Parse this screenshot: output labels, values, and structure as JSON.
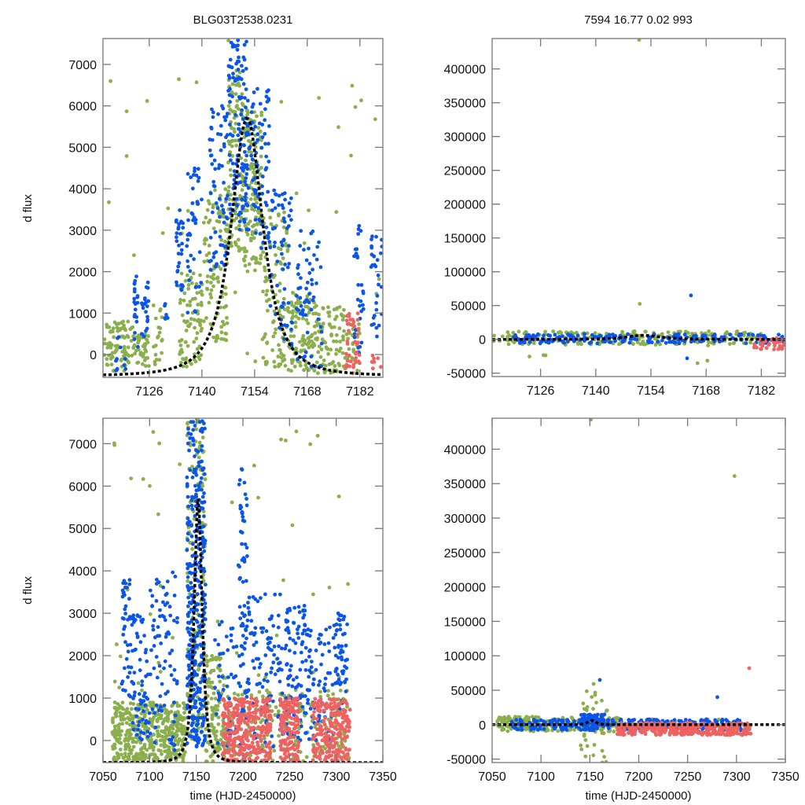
{
  "titles": {
    "left": "BLG03T2538.0231",
    "right": "7594  16.77  0.02  993"
  },
  "colors": {
    "series_a": "#8aaf4c",
    "series_b": "#0b55e8",
    "series_c": "#ee6262",
    "model": "#000000",
    "frame": "#777777"
  },
  "chart_data": [
    {
      "id": "zoom-flux",
      "type": "scatter",
      "title": "BLG03T2538.0231",
      "xlabel": "",
      "ylabel": "d flux",
      "xlim": [
        7113.7,
        7188.1
      ],
      "ylim": [
        -550,
        7625
      ],
      "xticks": [
        7126,
        7140,
        7154,
        7168,
        7182
      ],
      "yticks": [
        0,
        1000,
        2000,
        3000,
        4000,
        5000,
        6000,
        7000
      ],
      "model": {
        "t0": 7152,
        "peak": 5700,
        "width": 6.5,
        "baseline": -520
      },
      "series": [
        {
          "name": "green",
          "color_key": "series_a",
          "clusters": [
            [
              7114,
              7122,
              -400,
              800,
              90
            ],
            [
              7122,
              7126,
              -300,
              500,
              40
            ],
            [
              7127,
              7130,
              -300,
              1200,
              20
            ],
            [
              7134,
              7140,
              -300,
              2000,
              80
            ],
            [
              7140,
              7147,
              300,
              4000,
              100
            ],
            [
              7147,
              7151,
              2500,
              7000,
              120
            ],
            [
              7151,
              7156,
              2000,
              6000,
              140
            ],
            [
              7156,
              7163,
              -300,
              3500,
              110
            ],
            [
              7163,
              7170,
              -400,
              1500,
              100
            ],
            [
              7170,
              7178,
              -450,
              1200,
              90
            ],
            [
              7178,
              7182,
              -450,
              800,
              30
            ],
            [
              7114,
              7188,
              -300,
              7600,
              40
            ]
          ]
        },
        {
          "name": "blue",
          "color_key": "series_b",
          "clusters": [
            [
              7122,
              7123,
              0,
              2000,
              20
            ],
            [
              7124,
              7126,
              300,
              1800,
              20
            ],
            [
              7130,
              7131,
              800,
              1500,
              6
            ],
            [
              7133,
              7135,
              1500,
              3500,
              30
            ],
            [
              7136,
              7140,
              1000,
              4500,
              40
            ],
            [
              7142,
              7147,
              2000,
              6000,
              70
            ],
            [
              7147,
              7152,
              3000,
              7600,
              120
            ],
            [
              7152,
              7158,
              2500,
              6500,
              80
            ],
            [
              7158,
              7164,
              200,
              4000,
              60
            ],
            [
              7165,
              7172,
              -300,
              3000,
              60
            ],
            [
              7180,
              7183,
              0,
              3200,
              30
            ],
            [
              7185,
              7188,
              400,
              3000,
              30
            ],
            [
              7117,
              7120,
              -400,
              500,
              10
            ]
          ]
        },
        {
          "name": "red",
          "color_key": "series_c",
          "clusters": [
            [
              7178,
              7182,
              -500,
              1000,
              40
            ],
            [
              7185,
              7188,
              -450,
              0,
              8
            ]
          ]
        }
      ]
    },
    {
      "id": "zoom-flux-full",
      "type": "scatter",
      "title": "7594  16.77  0.02  993",
      "xlabel": "",
      "ylabel": "",
      "xlim": [
        7113.7,
        7188.1
      ],
      "ylim": [
        -55000,
        445000
      ],
      "xticks": [
        7126,
        7140,
        7154,
        7168,
        7182
      ],
      "yticks": [
        -50000,
        0,
        50000,
        100000,
        150000,
        200000,
        250000,
        300000,
        350000,
        400000
      ],
      "series": [
        {
          "name": "green",
          "color_key": "series_a",
          "clusters": [
            [
              7114,
              7182,
              -8000,
              12000,
              220
            ],
            [
              7150,
              7152,
              -30000,
              65000,
              4
            ],
            [
              7165,
              7170,
              -55000,
              30000,
              10
            ],
            [
              7123,
              7130,
              -30000,
              -15000,
              3
            ]
          ]
        },
        {
          "name": "blue",
          "color_key": "series_b",
          "clusters": [
            [
              7119,
              7188,
              -6000,
              8000,
              200
            ],
            [
              7164,
              7166,
              65000,
              65000,
              1
            ],
            [
              7163,
              7164,
              -28000,
              -28000,
              1
            ]
          ]
        },
        {
          "name": "red",
          "color_key": "series_c",
          "clusters": [
            [
              7180,
              7188,
              -15000,
              2000,
              40
            ]
          ]
        }
      ],
      "outliers": [
        {
          "x": 7151,
          "y": 443000,
          "color_key": "series_a"
        }
      ]
    },
    {
      "id": "full-flux",
      "type": "scatter",
      "title": "",
      "xlabel": "time (HJD-2450000)",
      "ylabel": "d flux",
      "xlim": [
        7050,
        7350
      ],
      "ylim": [
        -520,
        7600
      ],
      "xticks": [
        7050,
        7100,
        7150,
        7200,
        7250,
        7300,
        7350
      ],
      "yticks": [
        0,
        1000,
        2000,
        3000,
        4000,
        5000,
        6000,
        7000
      ],
      "model": {
        "t0": 7152,
        "peak": 5700,
        "width": 6.5,
        "baseline": -520
      },
      "series": [
        {
          "name": "green",
          "color_key": "series_a",
          "clusters": [
            [
              7060,
              7140,
              -500,
              900,
              450
            ],
            [
              7140,
              7160,
              0,
              7600,
              150
            ],
            [
              7160,
              7180,
              -500,
              2000,
              120
            ],
            [
              7180,
              7315,
              -500,
              1200,
              200
            ],
            [
              7060,
              7315,
              -400,
              7500,
              60
            ]
          ]
        },
        {
          "name": "blue",
          "color_key": "series_b",
          "clusters": [
            [
              7070,
              7080,
              1000,
              3800,
              40
            ],
            [
              7080,
              7100,
              0,
              3000,
              70
            ],
            [
              7100,
              7130,
              -300,
              4000,
              80
            ],
            [
              7140,
              7160,
              -200,
              7600,
              350
            ],
            [
              7170,
              7195,
              -300,
              2800,
              50
            ],
            [
              7195,
              7205,
              -300,
              6800,
              70
            ],
            [
              7205,
              7240,
              -300,
              3500,
              90
            ],
            [
              7240,
              7270,
              0,
              3200,
              110
            ],
            [
              7270,
              7300,
              0,
              2800,
              70
            ],
            [
              7300,
              7312,
              500,
              3000,
              50
            ]
          ]
        },
        {
          "name": "red",
          "color_key": "series_c",
          "clusters": [
            [
              7178,
              7230,
              -500,
              1000,
              330
            ],
            [
              7240,
              7260,
              -500,
              1000,
              150
            ],
            [
              7275,
              7315,
              -500,
              1000,
              220
            ]
          ]
        }
      ]
    },
    {
      "id": "full-flux-full",
      "type": "scatter",
      "title": "",
      "xlabel": "time (HJD-2450000)",
      "ylabel": "",
      "xlim": [
        7050,
        7350
      ],
      "ylim": [
        -55000,
        445000
      ],
      "xticks": [
        7050,
        7100,
        7150,
        7200,
        7250,
        7300,
        7350
      ],
      "yticks": [
        -50000,
        0,
        50000,
        100000,
        150000,
        200000,
        250000,
        300000,
        350000,
        400000
      ],
      "series": [
        {
          "name": "green",
          "color_key": "series_a",
          "clusters": [
            [
              7055,
              7180,
              -10000,
              12000,
              250
            ],
            [
              7140,
              7170,
              -55000,
              60000,
              40
            ],
            [
              7180,
              7315,
              -8000,
              8000,
              60
            ]
          ]
        },
        {
          "name": "blue",
          "color_key": "series_b",
          "clusters": [
            [
              7070,
              7310,
              -8000,
              8000,
              300
            ],
            [
              7140,
              7165,
              0,
              15000,
              60
            ],
            [
              7160,
              7162,
              65000,
              65000,
              1
            ],
            [
              7280,
              7281,
              40000,
              40000,
              1
            ]
          ]
        },
        {
          "name": "red",
          "color_key": "series_c",
          "clusters": [
            [
              7178,
              7315,
              -15000,
              3000,
              350
            ]
          ]
        }
      ],
      "outliers": [
        {
          "x": 7151,
          "y": 443000,
          "color_key": "series_a"
        },
        {
          "x": 7298,
          "y": 361000,
          "color_key": "series_a"
        },
        {
          "x": 7313,
          "y": 82000,
          "color_key": "series_c"
        }
      ]
    }
  ]
}
